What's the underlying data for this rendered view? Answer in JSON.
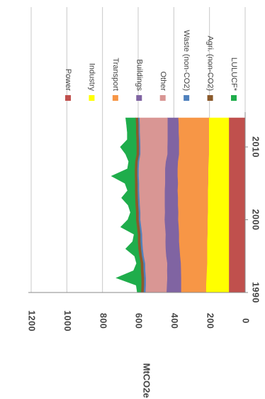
{
  "chart_data": {
    "type": "area",
    "stacked": true,
    "ylabel": "MtCO2e",
    "xlabel": "",
    "ylim": [
      0,
      1200
    ],
    "y_ticks": [
      "0",
      "200",
      "400",
      "600",
      "800",
      "1000",
      "1200"
    ],
    "x_ticks": [
      "1990",
      "2000",
      "2010"
    ],
    "grid": "horizontal",
    "legend_position": "top",
    "x": [
      1990,
      1991,
      1992,
      1993,
      1994,
      1995,
      1996,
      1997,
      1998,
      1999,
      2000,
      2001,
      2002,
      2003,
      2004,
      2005,
      2006,
      2007,
      2008,
      2009,
      2010,
      2011,
      2012,
      2013,
      2014
    ],
    "series": [
      {
        "name": "Power",
        "color": "#c0504d",
        "values": [
          92,
          92,
          92,
          92,
          92,
          92,
          92,
          92,
          92,
          92,
          92,
          92,
          92,
          92,
          92,
          92,
          92,
          92,
          92,
          92,
          92,
          92,
          92,
          92,
          92
        ]
      },
      {
        "name": "Industry",
        "color": "#ffff00",
        "values": [
          128,
          128,
          126,
          124,
          122,
          122,
          122,
          122,
          120,
          120,
          120,
          118,
          118,
          118,
          118,
          116,
          116,
          116,
          114,
          112,
          112,
          112,
          112,
          112,
          112
        ]
      },
      {
        "name": "Transport",
        "color": "#f79646",
        "values": [
          140,
          140,
          142,
          145,
          148,
          152,
          155,
          158,
          160,
          162,
          165,
          166,
          168,
          168,
          170,
          170,
          172,
          172,
          172,
          168,
          168,
          168,
          170,
          170,
          172
        ]
      },
      {
        "name": "Buildings",
        "color": "#8064a2",
        "values": [
          82,
          80,
          78,
          78,
          76,
          78,
          78,
          76,
          75,
          76,
          76,
          75,
          74,
          74,
          72,
          72,
          70,
          70,
          68,
          65,
          65,
          64,
          62,
          62,
          60
        ]
      },
      {
        "name": "Other",
        "color": "#d99694",
        "values": [
          118,
          118,
          120,
          122,
          124,
          126,
          128,
          130,
          132,
          134,
          136,
          138,
          140,
          142,
          144,
          146,
          148,
          148,
          150,
          152,
          152,
          154,
          156,
          156,
          158
        ]
      },
      {
        "name": "Waste (non-CO2)",
        "color": "#4f81bd",
        "values": [
          10,
          10,
          10,
          10,
          10,
          10,
          10,
          10,
          9,
          9,
          9,
          9,
          9,
          9,
          8,
          8,
          8,
          8,
          8,
          7,
          7,
          7,
          7,
          7,
          7
        ]
      },
      {
        "name": "Agri. (non-CO2)",
        "color": "#8b5a2b",
        "values": [
          15,
          15,
          15,
          15,
          15,
          15,
          15,
          15,
          15,
          15,
          15,
          15,
          15,
          15,
          15,
          15,
          14,
          14,
          14,
          14,
          14,
          14,
          14,
          14,
          14
        ]
      },
      {
        "name": "LULUCF*",
        "color": "#1fad4b",
        "values": [
          20,
          28,
          140,
          40,
          22,
          25,
          70,
          28,
          20,
          90,
          45,
          30,
          40,
          75,
          40,
          55,
          130,
          40,
          35,
          60,
          90,
          50,
          48,
          52,
          55
        ]
      }
    ]
  }
}
